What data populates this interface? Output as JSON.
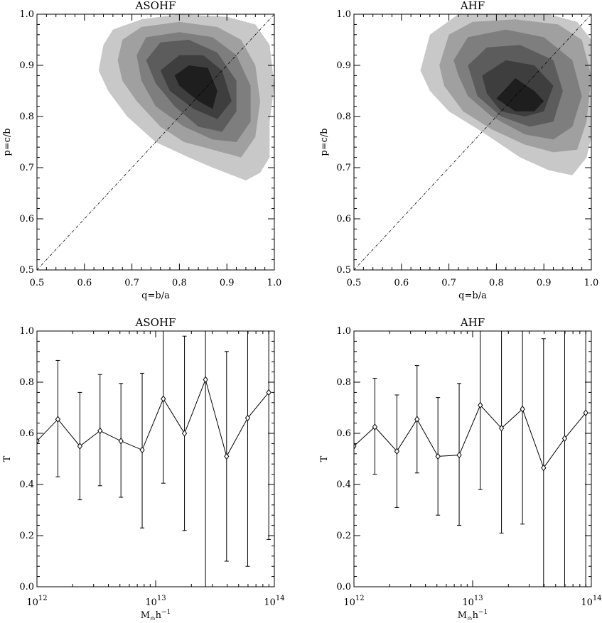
{
  "chart_data": [
    {
      "type": "contour",
      "title": "ASOHF",
      "xlabel": "q=b/a",
      "ylabel": "p=c/b",
      "xlim": [
        0.5,
        1.0
      ],
      "ylim": [
        0.5,
        1.0
      ],
      "xticks": [
        "0.5",
        "0.6",
        "0.7",
        "0.8",
        "0.9",
        "1.0"
      ],
      "yticks": [
        "0.5",
        "0.6",
        "0.7",
        "0.8",
        "0.9",
        "1.0"
      ],
      "reference_line": {
        "style": "dashed",
        "x": [
          0.5,
          1.0
        ],
        "y": [
          0.5,
          1.0
        ]
      },
      "contour_fills": [
        "#c8c8c8",
        "#a0a0a0",
        "#7e7e7e",
        "#5c5c5c",
        "#3e3e3e",
        "#1e1e1e"
      ],
      "contours": [
        [
          [
            0.63,
            0.89
          ],
          [
            0.64,
            0.94
          ],
          [
            0.66,
            0.97
          ],
          [
            0.72,
            0.99
          ],
          [
            0.8,
            1.0
          ],
          [
            0.9,
            0.995
          ],
          [
            0.96,
            0.98
          ],
          [
            0.99,
            0.94
          ],
          [
            1.0,
            0.86
          ],
          [
            0.99,
            0.79
          ],
          [
            0.99,
            0.72
          ],
          [
            0.97,
            0.69
          ],
          [
            0.94,
            0.675
          ],
          [
            0.87,
            0.7
          ],
          [
            0.82,
            0.72
          ],
          [
            0.75,
            0.75
          ],
          [
            0.69,
            0.8
          ],
          [
            0.65,
            0.85
          ]
        ],
        [
          [
            0.67,
            0.91
          ],
          [
            0.68,
            0.95
          ],
          [
            0.72,
            0.975
          ],
          [
            0.8,
            0.985
          ],
          [
            0.88,
            0.975
          ],
          [
            0.93,
            0.95
          ],
          [
            0.96,
            0.9
          ],
          [
            0.97,
            0.83
          ],
          [
            0.96,
            0.76
          ],
          [
            0.93,
            0.72
          ],
          [
            0.87,
            0.735
          ],
          [
            0.81,
            0.75
          ],
          [
            0.76,
            0.78
          ],
          [
            0.71,
            0.83
          ],
          [
            0.68,
            0.87
          ]
        ],
        [
          [
            0.71,
            0.92
          ],
          [
            0.73,
            0.955
          ],
          [
            0.8,
            0.965
          ],
          [
            0.87,
            0.955
          ],
          [
            0.92,
            0.92
          ],
          [
            0.95,
            0.86
          ],
          [
            0.95,
            0.79
          ],
          [
            0.92,
            0.75
          ],
          [
            0.87,
            0.755
          ],
          [
            0.81,
            0.78
          ],
          [
            0.75,
            0.82
          ],
          [
            0.72,
            0.87
          ]
        ],
        [
          [
            0.73,
            0.91
          ],
          [
            0.76,
            0.945
          ],
          [
            0.82,
            0.95
          ],
          [
            0.88,
            0.925
          ],
          [
            0.92,
            0.87
          ],
          [
            0.92,
            0.81
          ],
          [
            0.89,
            0.77
          ],
          [
            0.84,
            0.78
          ],
          [
            0.79,
            0.82
          ],
          [
            0.75,
            0.865
          ]
        ],
        [
          [
            0.76,
            0.89
          ],
          [
            0.8,
            0.92
          ],
          [
            0.85,
            0.92
          ],
          [
            0.89,
            0.89
          ],
          [
            0.91,
            0.83
          ],
          [
            0.88,
            0.795
          ],
          [
            0.83,
            0.815
          ],
          [
            0.78,
            0.85
          ]
        ],
        [
          [
            0.79,
            0.88
          ],
          [
            0.82,
            0.9
          ],
          [
            0.86,
            0.895
          ],
          [
            0.88,
            0.85
          ],
          [
            0.87,
            0.815
          ],
          [
            0.84,
            0.83
          ],
          [
            0.8,
            0.86
          ]
        ]
      ]
    },
    {
      "type": "contour",
      "title": "AHF",
      "xlabel": "q=b/a",
      "ylabel": "p=c/b",
      "xlim": [
        0.5,
        1.0
      ],
      "ylim": [
        0.5,
        1.0
      ],
      "xticks": [
        "0.5",
        "0.6",
        "0.7",
        "0.8",
        "0.9",
        "1.0"
      ],
      "yticks": [
        "0.5",
        "0.6",
        "0.7",
        "0.8",
        "0.9",
        "1.0"
      ],
      "reference_line": {
        "style": "dashed",
        "x": [
          0.5,
          1.0
        ],
        "y": [
          0.5,
          1.0
        ]
      },
      "contour_fills": [
        "#c8c8c8",
        "#a0a0a0",
        "#7e7e7e",
        "#5c5c5c",
        "#3e3e3e",
        "#1e1e1e"
      ],
      "contours": [
        [
          [
            0.64,
            0.89
          ],
          [
            0.66,
            0.96
          ],
          [
            0.72,
            1.0
          ],
          [
            0.82,
            1.005
          ],
          [
            0.91,
            1.0
          ],
          [
            0.97,
            0.985
          ],
          [
            1.0,
            0.95
          ],
          [
            1.0,
            0.86
          ],
          [
            1.0,
            0.76
          ],
          [
            0.99,
            0.72
          ],
          [
            0.96,
            0.685
          ],
          [
            0.91,
            0.695
          ],
          [
            0.85,
            0.72
          ],
          [
            0.77,
            0.77
          ],
          [
            0.7,
            0.81
          ],
          [
            0.66,
            0.85
          ]
        ],
        [
          [
            0.68,
            0.9
          ],
          [
            0.7,
            0.96
          ],
          [
            0.75,
            0.985
          ],
          [
            0.84,
            0.99
          ],
          [
            0.93,
            0.98
          ],
          [
            0.98,
            0.95
          ],
          [
            1.0,
            0.88
          ],
          [
            0.99,
            0.79
          ],
          [
            0.97,
            0.735
          ],
          [
            0.92,
            0.73
          ],
          [
            0.86,
            0.745
          ],
          [
            0.79,
            0.775
          ],
          [
            0.73,
            0.81
          ],
          [
            0.69,
            0.86
          ]
        ],
        [
          [
            0.71,
            0.91
          ],
          [
            0.74,
            0.955
          ],
          [
            0.82,
            0.97
          ],
          [
            0.9,
            0.955
          ],
          [
            0.96,
            0.91
          ],
          [
            0.98,
            0.84
          ],
          [
            0.96,
            0.78
          ],
          [
            0.92,
            0.755
          ],
          [
            0.86,
            0.765
          ],
          [
            0.79,
            0.8
          ],
          [
            0.74,
            0.84
          ],
          [
            0.72,
            0.88
          ]
        ],
        [
          [
            0.74,
            0.9
          ],
          [
            0.78,
            0.935
          ],
          [
            0.85,
            0.94
          ],
          [
            0.92,
            0.91
          ],
          [
            0.94,
            0.85
          ],
          [
            0.92,
            0.79
          ],
          [
            0.87,
            0.78
          ],
          [
            0.81,
            0.8
          ],
          [
            0.76,
            0.84
          ]
        ],
        [
          [
            0.77,
            0.88
          ],
          [
            0.82,
            0.91
          ],
          [
            0.88,
            0.9
          ],
          [
            0.92,
            0.86
          ],
          [
            0.9,
            0.81
          ],
          [
            0.86,
            0.8
          ],
          [
            0.81,
            0.81
          ],
          [
            0.78,
            0.845
          ]
        ],
        [
          [
            0.8,
            0.835
          ],
          [
            0.84,
            0.875
          ],
          [
            0.88,
            0.85
          ],
          [
            0.9,
            0.83
          ],
          [
            0.88,
            0.81
          ],
          [
            0.84,
            0.81
          ]
        ]
      ]
    },
    {
      "type": "line",
      "title": "ASOHF",
      "xlabel": "M",
      "xlabel_sub": "⊙",
      "xlabel_rest": "h",
      "xlabel_sup": "−1",
      "ylabel": "T",
      "xscale": "log",
      "xlim": [
        1000000000000.0,
        100000000000000.0
      ],
      "ylim": [
        0,
        1
      ],
      "xticks": [
        {
          "base": "10",
          "exp": "12"
        },
        {
          "base": "10",
          "exp": "13"
        },
        {
          "base": "10",
          "exp": "14"
        }
      ],
      "yticks": [
        "0.0",
        "0.2",
        "0.4",
        "0.6",
        "0.8",
        "1.0"
      ],
      "marker": "diamond",
      "x": [
        1000000000000.0,
        1500000000000.0,
        2300000000000.0,
        3400000000000.0,
        5100000000000.0,
        7700000000000.0,
        11600000000000.0,
        17500000000000.0,
        26300000000000.0,
        39600000000000.0,
        59600000000000.0,
        89700000000000.0
      ],
      "y": [
        0.57,
        0.655,
        0.55,
        0.61,
        0.57,
        0.535,
        0.735,
        0.6,
        0.81,
        0.51,
        0.66,
        0.76
      ],
      "yerr_low": [
        null,
        0.43,
        0.34,
        0.395,
        0.35,
        0.23,
        0.405,
        0.22,
        0.0,
        0.1,
        0.08,
        0.185
      ],
      "yerr_high": [
        null,
        0.885,
        0.76,
        0.83,
        0.795,
        0.835,
        1.0,
        0.98,
        1.0,
        0.92,
        1.0,
        1.0
      ]
    },
    {
      "type": "line",
      "title": "AHF",
      "xlabel": "M",
      "xlabel_sub": "⊙",
      "xlabel_rest": "h",
      "xlabel_sup": "−1",
      "ylabel": "T",
      "xscale": "log",
      "xlim": [
        1000000000000.0,
        100000000000000.0
      ],
      "ylim": [
        0,
        1
      ],
      "xticks": [
        {
          "base": "10",
          "exp": "12"
        },
        {
          "base": "10",
          "exp": "13"
        },
        {
          "base": "10",
          "exp": "14"
        }
      ],
      "yticks": [
        "0.0",
        "0.2",
        "0.4",
        "0.6",
        "0.8",
        "1.0"
      ],
      "marker": "diamond",
      "x": [
        1000000000000.0,
        1500000000000.0,
        2300000000000.0,
        3400000000000.0,
        5100000000000.0,
        7700000000000.0,
        11600000000000.0,
        17500000000000.0,
        26300000000000.0,
        39600000000000.0,
        59600000000000.0,
        89700000000000.0
      ],
      "y": [
        0.55,
        0.625,
        0.53,
        0.655,
        0.51,
        0.515,
        0.71,
        0.62,
        0.695,
        0.465,
        0.58,
        0.68
      ],
      "yerr_low": [
        null,
        0.44,
        0.31,
        0.445,
        0.28,
        0.24,
        0.38,
        0.21,
        0.245,
        0.0,
        0.0,
        0.0
      ],
      "yerr_high": [
        null,
        0.815,
        0.75,
        0.865,
        0.74,
        0.795,
        1.0,
        1.0,
        1.0,
        0.97,
        1.0,
        1.0
      ]
    }
  ]
}
